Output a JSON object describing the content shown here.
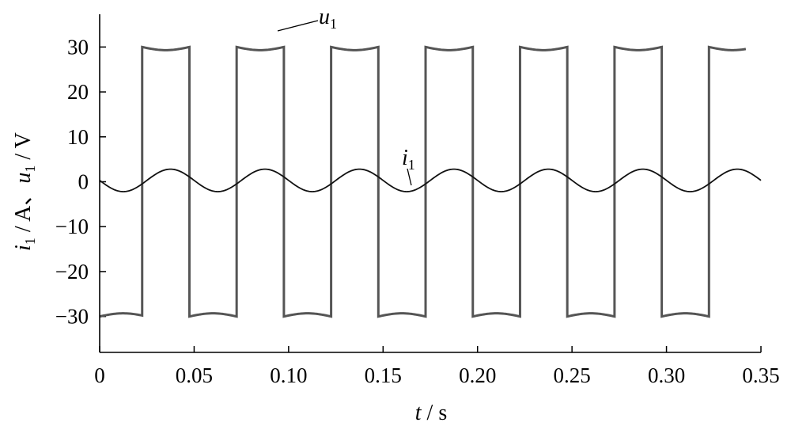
{
  "chart_data": {
    "type": "line",
    "xlim": [
      0,
      0.35
    ],
    "ylim": [
      -38,
      38
    ],
    "x_ticks": [
      "0",
      "0.05",
      "0.10",
      "0.15",
      "0.20",
      "0.25",
      "0.30",
      "0.35"
    ],
    "y_ticks": [
      "30",
      "20",
      "10",
      "0",
      "−10",
      "−20",
      "−30"
    ],
    "xlabel": {
      "var": "t",
      "unit": " / s"
    },
    "ylabel": {
      "i": "i",
      "i_sub": "1",
      "mid": " / A、",
      "u": "u",
      "u_sub": "1",
      "unit": " / V"
    },
    "grid": false,
    "series": [
      {
        "name": "u1",
        "label_var": "u",
        "label_sub": "1",
        "color": "#555555",
        "waveform": "square",
        "amplitude": 30,
        "period": 0.05,
        "first_rise": 0.0225,
        "x_range": [
          0,
          0.342
        ]
      },
      {
        "name": "i1",
        "label_var": "i",
        "label_sub": "1",
        "color": "#111111",
        "waveform": "sine",
        "amplitude": 2.5,
        "offset": 0.3,
        "period": 0.05,
        "x_range": [
          0,
          0.35
        ]
      }
    ]
  }
}
